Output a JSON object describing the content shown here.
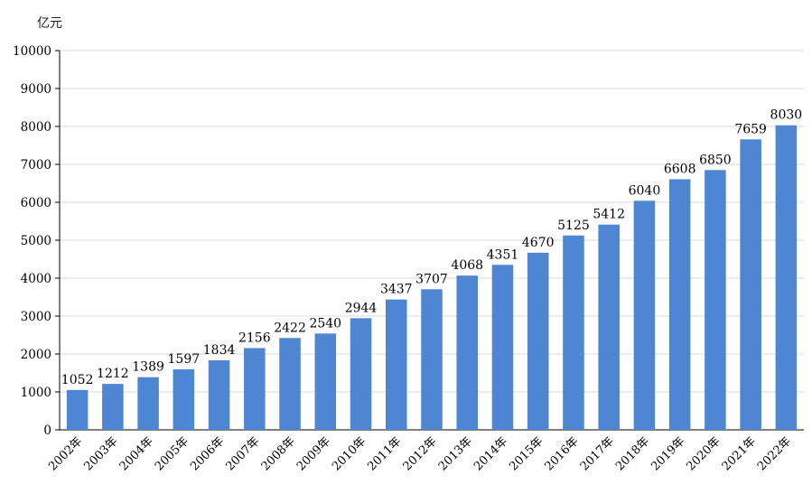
{
  "chart_data": {
    "type": "bar",
    "title": "",
    "unit_label": "亿元",
    "xlabel": "",
    "ylabel": "",
    "categories": [
      "2002年",
      "2003年",
      "2004年",
      "2005年",
      "2006年",
      "2007年",
      "2008年",
      "2009年",
      "2010年",
      "2011年",
      "2012年",
      "2013年",
      "2014年",
      "2015年",
      "2016年",
      "2017年",
      "2018年",
      "2019年",
      "2020年",
      "2021年",
      "2022年"
    ],
    "values": [
      1052,
      1212,
      1389,
      1597,
      1834,
      2156,
      2422,
      2540,
      2944,
      3437,
      3707,
      4068,
      4351,
      4670,
      5125,
      5412,
      6040,
      6608,
      6850,
      7659,
      8030
    ],
    "data_labels": [
      "1052",
      "1212",
      "1389",
      "1597",
      "1834",
      "2156",
      "2422",
      "2540",
      "2944",
      "3437",
      "3707",
      "4068",
      "4351",
      "4670",
      "5125",
      "5412",
      "6040",
      "6608",
      "6850",
      "7659",
      "8030"
    ],
    "ylim": [
      0,
      10000
    ],
    "yticks": [
      "0",
      "1000",
      "2000",
      "3000",
      "4000",
      "5000",
      "6000",
      "7000",
      "8000",
      "9000",
      "10000"
    ],
    "grid": true,
    "legend": "none",
    "bar_color": "#4f86d3"
  }
}
